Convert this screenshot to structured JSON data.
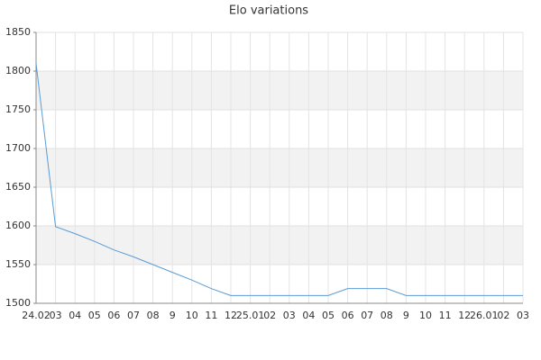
{
  "chart_data": {
    "type": "line",
    "title": "Elo variations",
    "categories": [
      "24.02",
      "03",
      "04",
      "05",
      "06",
      "07",
      "08",
      "9",
      "10",
      "11",
      "12",
      "25.01",
      "02",
      "03",
      "04",
      "05",
      "06",
      "07",
      "08",
      "9",
      "10",
      "11",
      "12",
      "26.01",
      "02",
      "03"
    ],
    "values": [
      1810,
      1599,
      1590,
      1580,
      1569,
      1560,
      1550,
      1540,
      1530,
      1519,
      1510,
      1510,
      1510,
      1510,
      1510,
      1510,
      1519,
      1519,
      1519,
      1510,
      1510,
      1510,
      1510,
      1510,
      1510,
      1510
    ],
    "color": "#5b9bd5",
    "ylim": [
      1500,
      1850
    ],
    "yticks": [
      1500,
      1550,
      1600,
      1650,
      1700,
      1750,
      1800,
      1850
    ],
    "grid": true,
    "alternate_bands": true
  }
}
